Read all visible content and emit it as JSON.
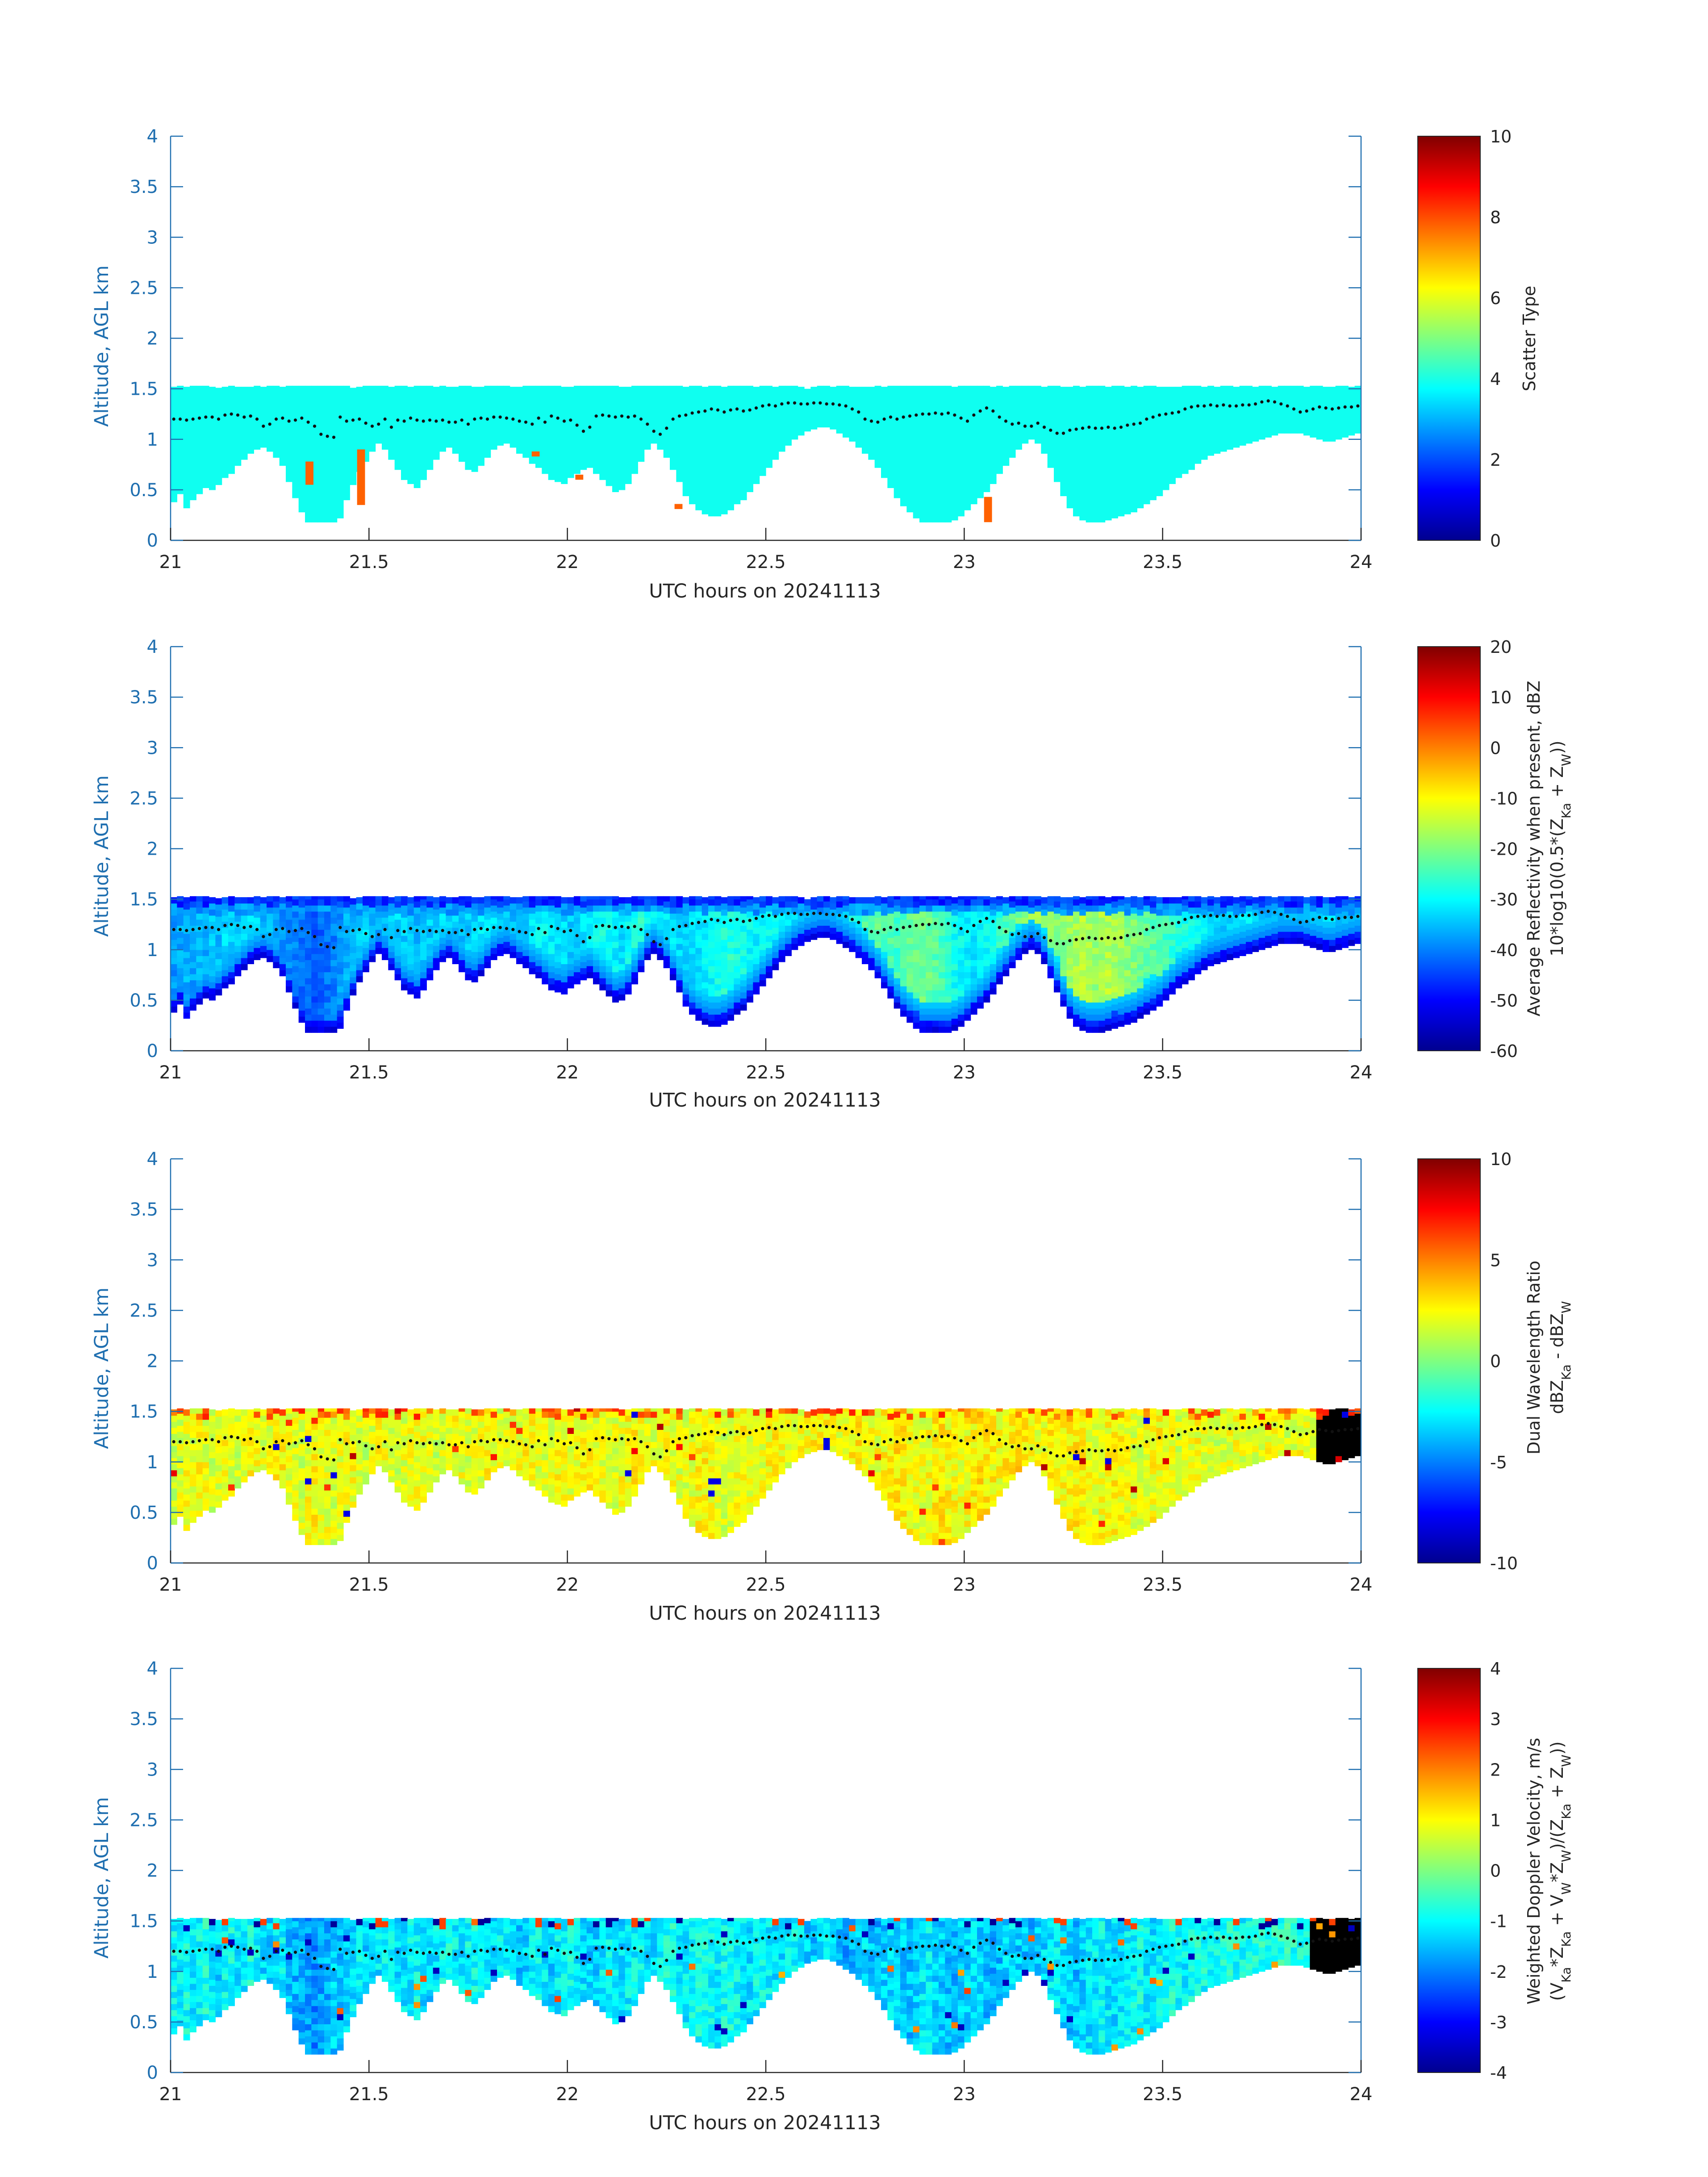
{
  "figure": {
    "xlabel": "UTC hours on 20241113",
    "ylabel": "Altitude, AGL km",
    "xlim": [
      21,
      24
    ],
    "ylim": [
      0,
      4
    ],
    "xticks": [
      "21",
      "21.5",
      "22",
      "22.5",
      "23",
      "23.5",
      "24"
    ],
    "yticks": [
      "0",
      "0.5",
      "1",
      "1.5",
      "2",
      "2.5",
      "3",
      "3.5",
      "4"
    ],
    "axis_color": "#1f6fb0",
    "label_color": "#262626"
  },
  "chart_data": [
    {
      "type": "heatmap",
      "panel": 1,
      "title": "",
      "variable": "scatter_type",
      "colorbar_label": "Scatter Type",
      "clim": [
        0,
        10
      ],
      "cticks": [
        "0",
        "2",
        "4",
        "6",
        "8",
        "10"
      ],
      "dominant_value": 3.9,
      "outliers": [
        {
          "t_start": 21.34,
          "t_end": 21.36,
          "z_start": 0.55,
          "z_end": 0.78,
          "value": 7.8
        },
        {
          "t_start": 21.47,
          "t_end": 21.49,
          "z_start": 0.35,
          "z_end": 0.9,
          "value": 7.8
        },
        {
          "t_start": 21.91,
          "t_end": 21.93,
          "z_start": 0.83,
          "z_end": 0.88,
          "value": 7.8
        },
        {
          "t_start": 22.02,
          "t_end": 22.04,
          "z_start": 0.6,
          "z_end": 0.65,
          "value": 7.8
        },
        {
          "t_start": 22.27,
          "t_end": 22.29,
          "z_start": 0.31,
          "z_end": 0.36,
          "value": 7.8
        },
        {
          "t_start": 23.05,
          "t_end": 23.07,
          "z_start": 0.18,
          "z_end": 0.43,
          "value": 7.8
        }
      ]
    },
    {
      "type": "heatmap",
      "panel": 2,
      "variable": "average_reflectivity",
      "colorbar_label": [
        "Average Reflectivity when present, dBZ",
        "10*log10(0.5*(Z",
        "Ka",
        " + Z",
        "W",
        "))"
      ],
      "clim": [
        -60,
        20
      ],
      "cticks": [
        "-60",
        "-50",
        "-40",
        "-30",
        "-20",
        "-10",
        "0",
        "10",
        "20"
      ]
    },
    {
      "type": "heatmap",
      "panel": 3,
      "variable": "dual_wavelength_ratio",
      "colorbar_label": [
        "Dual Wavelength Ratio",
        "dBZ",
        "Ka",
        " - dBZ",
        "W"
      ],
      "clim": [
        -10,
        10
      ],
      "cticks": [
        "-10",
        "-5",
        "0",
        "5",
        "10"
      ]
    },
    {
      "type": "heatmap",
      "panel": 4,
      "variable": "weighted_doppler_velocity",
      "colorbar_label": [
        "Weighted Doppler Velocity, m/s",
        "(V",
        "Ka",
        "*Z",
        "Ka",
        " + V",
        "W",
        "*Z",
        "W",
        ")/(Z",
        "Ka",
        " + Z",
        "W",
        "))"
      ],
      "clim": [
        -4,
        4
      ],
      "cticks": [
        "-4",
        "-3",
        "-2",
        "-1",
        "0",
        "1",
        "2",
        "3",
        "4"
      ]
    }
  ],
  "cloud_profile": {
    "time_step_h": 0.0166667,
    "range_gate_km": 0.06,
    "cloud_top_km": [
      1.53,
      1.53,
      1.53,
      1.53,
      1.53,
      1.53,
      1.53,
      1.53,
      1.53,
      1.53,
      1.53,
      1.53,
      1.53,
      1.53,
      1.53,
      1.53,
      1.53,
      1.53,
      1.53,
      1.53,
      1.53,
      1.53,
      1.53,
      1.53,
      1.53,
      1.53,
      1.53,
      1.53,
      1.53,
      1.53,
      1.53,
      1.53,
      1.53,
      1.53,
      1.53,
      1.53,
      1.53,
      1.53,
      1.53,
      1.53,
      1.53,
      1.53,
      1.53,
      1.53,
      1.53,
      1.53,
      1.53,
      1.53,
      1.53,
      1.53,
      1.53,
      1.53,
      1.53,
      1.53,
      1.53,
      1.53,
      1.53,
      1.53,
      1.53,
      1.53,
      1.53,
      1.53,
      1.53,
      1.53,
      1.53,
      1.53,
      1.53,
      1.53,
      1.53,
      1.53,
      1.53,
      1.53,
      1.53,
      1.53,
      1.53,
      1.53,
      1.53,
      1.53,
      1.53,
      1.53,
      1.53,
      1.53,
      1.53,
      1.53,
      1.53,
      1.53,
      1.53,
      1.53,
      1.53,
      1.53,
      1.53,
      1.53,
      1.53,
      1.53,
      1.53,
      1.53,
      1.53,
      1.53,
      1.53,
      1.53,
      1.53,
      1.53,
      1.53,
      1.53,
      1.53,
      1.53,
      1.53,
      1.53,
      1.53,
      1.53,
      1.53,
      1.53,
      1.53,
      1.53,
      1.53,
      1.53,
      1.53,
      1.53,
      1.53,
      1.53,
      1.53,
      1.53,
      1.53,
      1.53,
      1.53,
      1.53,
      1.53,
      1.53,
      1.53,
      1.53,
      1.53,
      1.53,
      1.53,
      1.53,
      1.53,
      1.53,
      1.53,
      1.53,
      1.53,
      1.53,
      1.53,
      1.53,
      1.53,
      1.53,
      1.53,
      1.53,
      1.53,
      1.53,
      1.53,
      1.53,
      1.53,
      1.53,
      1.53,
      1.53,
      1.53,
      1.53,
      1.53,
      1.53,
      1.53,
      1.53,
      1.53,
      1.53,
      1.53,
      1.53,
      1.53,
      1.53,
      1.53,
      1.53,
      1.53,
      1.53,
      1.53,
      1.53,
      1.53,
      1.53,
      1.53,
      1.53,
      1.53,
      1.53,
      1.53,
      1.53,
      1.53,
      1.53,
      1.53,
      1.53,
      1.53,
      1.53
    ],
    "cloud_base_km": [
      0.38,
      0.46,
      0.32,
      0.4,
      0.46,
      0.52,
      0.5,
      0.55,
      0.62,
      0.66,
      0.74,
      0.8,
      0.86,
      0.9,
      0.92,
      0.88,
      0.82,
      0.74,
      0.58,
      0.42,
      0.28,
      0.18,
      0.18,
      0.18,
      0.18,
      0.18,
      0.22,
      0.4,
      0.55,
      0.68,
      0.78,
      0.88,
      0.96,
      0.9,
      0.8,
      0.7,
      0.6,
      0.56,
      0.52,
      0.6,
      0.7,
      0.8,
      0.88,
      0.92,
      0.86,
      0.78,
      0.7,
      0.68,
      0.74,
      0.82,
      0.9,
      0.94,
      0.96,
      0.92,
      0.86,
      0.82,
      0.76,
      0.72,
      0.66,
      0.6,
      0.58,
      0.56,
      0.62,
      0.66,
      0.7,
      0.72,
      0.66,
      0.6,
      0.54,
      0.48,
      0.5,
      0.56,
      0.66,
      0.78,
      0.9,
      0.96,
      0.9,
      0.82,
      0.7,
      0.58,
      0.44,
      0.36,
      0.3,
      0.26,
      0.24,
      0.24,
      0.26,
      0.3,
      0.36,
      0.4,
      0.48,
      0.56,
      0.64,
      0.72,
      0.8,
      0.88,
      0.94,
      1.0,
      1.04,
      1.08,
      1.1,
      1.12,
      1.12,
      1.1,
      1.06,
      1.02,
      0.98,
      0.92,
      0.86,
      0.8,
      0.72,
      0.62,
      0.52,
      0.42,
      0.34,
      0.28,
      0.22,
      0.18,
      0.18,
      0.18,
      0.18,
      0.18,
      0.2,
      0.24,
      0.3,
      0.36,
      0.42,
      0.48,
      0.56,
      0.66,
      0.74,
      0.82,
      0.9,
      0.96,
      1.0,
      0.96,
      0.86,
      0.72,
      0.58,
      0.44,
      0.32,
      0.24,
      0.2,
      0.18,
      0.18,
      0.18,
      0.2,
      0.22,
      0.24,
      0.26,
      0.28,
      0.32,
      0.36,
      0.4,
      0.44,
      0.5,
      0.56,
      0.62,
      0.66,
      0.7,
      0.76,
      0.8,
      0.84,
      0.86,
      0.88,
      0.9,
      0.92,
      0.94,
      0.96,
      0.98,
      1.0,
      1.02,
      1.04,
      1.06,
      1.06,
      1.06,
      1.06,
      1.04,
      1.02,
      1.0,
      0.98,
      0.98,
      1.0,
      1.02,
      1.04,
      1.06
    ],
    "reflectivity_dBZ": [
      -38,
      -37,
      -36,
      -37,
      -35,
      -36,
      -34,
      -35,
      -33,
      -34,
      -35,
      -34,
      -32,
      -33,
      -35,
      -36,
      -37,
      -38,
      -39,
      -40,
      -41,
      -42,
      -43,
      -42,
      -41,
      -40,
      -38,
      -36,
      -35,
      -34,
      -33,
      -35,
      -36,
      -35,
      -34,
      -33,
      -34,
      -35,
      -36,
      -35,
      -34,
      -33,
      -32,
      -33,
      -34,
      -35,
      -34,
      -33,
      -32,
      -31,
      -32,
      -33,
      -34,
      -35,
      -34,
      -33,
      -32,
      -31,
      -30,
      -31,
      -32,
      -33,
      -34,
      -33,
      -32,
      -31,
      -30,
      -29,
      -30,
      -31,
      -32,
      -30,
      -28,
      -27,
      -28,
      -29,
      -30,
      -31,
      -32,
      -33,
      -34,
      -33,
      -32,
      -31,
      -30,
      -29,
      -28,
      -27,
      -28,
      -29,
      -30,
      -31,
      -30,
      -29,
      -28,
      -29,
      -30,
      -31,
      -32,
      -31,
      -30,
      -29,
      -30,
      -31,
      -32,
      -30,
      -28,
      -26,
      -24,
      -23,
      -22,
      -23,
      -24,
      -25,
      -24,
      -23,
      -22,
      -21,
      -22,
      -23,
      -25,
      -27,
      -29,
      -30,
      -31,
      -32,
      -31,
      -30,
      -28,
      -26,
      -24,
      -22,
      -20,
      -19,
      -18,
      -17,
      -18,
      -19,
      -20,
      -19,
      -18,
      -17,
      -16,
      -17,
      -18,
      -17,
      -16,
      -17,
      -18,
      -19,
      -20,
      -21,
      -22,
      -23,
      -24,
      -25,
      -26,
      -27,
      -28,
      -29,
      -30,
      -31,
      -32,
      -33,
      -33,
      -32,
      -31,
      -30,
      -31,
      -32,
      -33,
      -34,
      -35,
      -34,
      -33,
      -32,
      -33,
      -34,
      -35,
      -34,
      -33,
      -32,
      -33,
      -34,
      -35,
      -36,
      -35,
      -34
    ],
    "dwr_dB": [
      1.5,
      1.8,
      2.2,
      1.9,
      2.4,
      2.1,
      1.7,
      2.0,
      2.3,
      1.9,
      1.6,
      2.1,
      2.5,
      2.2,
      1.8,
      2.0,
      2.4,
      2.6,
      2.1,
      1.9,
      1.7,
      2.2,
      2.5,
      2.3,
      2.0,
      1.8,
      2.1,
      2.4,
      2.2,
      1.9,
      1.6,
      2.0,
      2.3,
      2.1,
      1.8,
      1.7,
      2.0,
      2.2,
      2.4,
      2.1,
      1.9,
      1.6,
      1.8,
      2.1,
      2.3,
      2.0,
      1.8,
      1.9,
      2.2,
      2.4,
      2.1,
      1.9,
      1.7,
      2.0,
      2.2,
      2.5,
      2.3,
      2.0,
      1.8,
      2.1,
      2.3,
      2.1,
      1.9,
      2.2,
      2.4,
      2.6,
      2.3,
      2.1,
      1.9,
      2.0,
      2.2,
      2.5,
      2.7,
      2.4,
      2.1,
      2.0,
      2.3,
      2.5,
      2.2,
      1.9,
      1.8,
      2.1,
      2.4,
      2.6,
      2.3,
      2.0,
      1.8,
      2.0,
      2.3,
      2.5,
      2.2,
      2.0,
      2.1,
      2.4,
      2.6,
      2.3,
      2.1,
      1.9,
      2.2,
      2.4,
      2.6,
      2.8,
      2.5,
      2.2,
      2.0,
      2.3,
      2.6,
      2.9,
      2.7,
      2.4,
      2.2,
      2.5,
      2.8,
      3.0,
      2.7,
      2.4,
      2.2,
      2.0,
      2.3,
      2.6,
      2.8,
      2.5,
      2.3,
      2.1,
      2.4,
      2.7,
      3.0,
      2.8,
      2.5,
      2.3,
      2.6,
      2.9,
      3.1,
      2.8,
      2.5,
      2.2,
      2.4,
      2.7,
      2.5,
      2.3,
      2.6,
      2.8,
      2.5,
      2.2,
      2.0,
      2.3,
      2.5,
      2.7,
      2.4,
      2.2,
      2.0,
      1.8,
      2.1,
      2.3,
      2.5,
      2.2,
      2.0,
      1.8,
      1.9,
      2.1,
      2.3,
      2.0,
      1.8,
      1.7,
      1.9,
      2.1,
      2.2,
      2.0,
      1.8,
      1.9,
      2.1,
      2.3,
      2.1,
      1.9,
      1.8,
      2.0,
      2.2,
      2.0,
      1.9
    ],
    "velocity_ms": [
      -1.0,
      -1.1,
      -0.9,
      -1.2,
      -1.0,
      -0.8,
      -1.1,
      -1.3,
      -1.0,
      -0.9,
      -1.2,
      -1.1,
      -0.8,
      -1.0,
      -1.3,
      -1.4,
      -1.2,
      -1.1,
      -1.5,
      -1.6,
      -1.7,
      -1.8,
      -1.9,
      -1.7,
      -1.6,
      -1.4,
      -1.5,
      -1.3,
      -1.2,
      -1.1,
      -1.3,
      -1.4,
      -1.2,
      -1.0,
      -1.1,
      -1.3,
      -1.2,
      -1.1,
      -1.0,
      -1.2,
      -1.3,
      -1.1,
      -1.0,
      -0.9,
      -1.1,
      -1.2,
      -1.0,
      -0.9,
      -1.1,
      -1.2,
      -1.3,
      -1.1,
      -1.0,
      -1.2,
      -1.4,
      -1.3,
      -1.1,
      -1.0,
      -1.2,
      -1.3,
      -1.1,
      -1.0,
      -0.9,
      -1.1,
      -1.2,
      -1.4,
      -1.3,
      -1.1,
      -1.0,
      -1.2,
      -1.3,
      -1.1,
      -1.0,
      -0.9,
      -1.1,
      -1.2,
      -1.0,
      -0.9,
      -0.8,
      -1.0,
      -1.1,
      -1.0,
      -0.9,
      -0.8,
      -1.0,
      -1.1,
      -0.9,
      -0.8,
      -1.0,
      -1.1,
      -1.2,
      -1.0,
      -0.9,
      -1.1,
      -1.2,
      -1.3,
      -1.1,
      -1.0,
      -1.2,
      -1.4,
      -1.5,
      -1.3,
      -1.2,
      -1.4,
      -1.6,
      -1.7,
      -1.5,
      -1.4,
      -1.3,
      -1.5,
      -1.6,
      -1.4,
      -1.3,
      -1.2,
      -1.4,
      -1.5,
      -1.3,
      -1.2,
      -1.1,
      -1.3,
      -1.4,
      -1.5,
      -1.6,
      -1.4,
      -1.3,
      -1.2,
      -1.4,
      -1.5,
      -1.6,
      -1.5,
      -1.3,
      -1.2,
      -1.4,
      -1.5,
      -1.6,
      -1.4,
      -1.3,
      -1.2,
      -1.1,
      -1.3,
      -1.4,
      -1.5,
      -1.3,
      -1.2,
      -1.1,
      -1.0,
      -1.2,
      -1.3,
      -1.2,
      -1.1,
      -1.0,
      -0.9,
      -1.1,
      -1.2,
      -1.0,
      -0.9,
      -0.8,
      -1.0,
      -1.1,
      -0.9,
      -0.8,
      -0.9,
      -1.0,
      -0.9,
      -0.8,
      -0.7,
      -0.9,
      -1.0,
      -0.8,
      -0.7,
      -0.8,
      -0.9,
      -0.8,
      -0.7,
      -0.6,
      -0.8,
      -0.9,
      -0.8
    ],
    "lcl_km": [
      1.2,
      1.2,
      1.19,
      1.2,
      1.21,
      1.22,
      1.22,
      1.2,
      1.24,
      1.25,
      1.24,
      1.22,
      1.23,
      1.2,
      1.13,
      1.15,
      1.2,
      1.21,
      1.18,
      1.19,
      1.21,
      1.17,
      1.13,
      1.05,
      1.03,
      1.02,
      1.22,
      1.18,
      1.19,
      1.2,
      1.16,
      1.13,
      1.15,
      1.2,
      1.12,
      1.19,
      1.18,
      1.21,
      1.19,
      1.18,
      1.19,
      1.18,
      1.19,
      1.17,
      1.17,
      1.19,
      1.15,
      1.2,
      1.21,
      1.2,
      1.22,
      1.22,
      1.21,
      1.2,
      1.18,
      1.17,
      1.15,
      1.21,
      1.17,
      1.23,
      1.21,
      1.18,
      1.19,
      1.14,
      1.08,
      1.12,
      1.23,
      1.24,
      1.23,
      1.22,
      1.23,
      1.22,
      1.23,
      1.2,
      1.15,
      1.08,
      1.05,
      1.11,
      1.2,
      1.23,
      1.24,
      1.26,
      1.27,
      1.28,
      1.3,
      1.29,
      1.27,
      1.29,
      1.3,
      1.28,
      1.29,
      1.31,
      1.33,
      1.34,
      1.33,
      1.35,
      1.36,
      1.36,
      1.35,
      1.35,
      1.36,
      1.36,
      1.35,
      1.35,
      1.34,
      1.33,
      1.3,
      1.27,
      1.2,
      1.18,
      1.17,
      1.2,
      1.22,
      1.2,
      1.22,
      1.23,
      1.24,
      1.25,
      1.25,
      1.26,
      1.25,
      1.26,
      1.24,
      1.21,
      1.18,
      1.24,
      1.28,
      1.31,
      1.28,
      1.22,
      1.18,
      1.15,
      1.16,
      1.13,
      1.13,
      1.16,
      1.12,
      1.09,
      1.06,
      1.06,
      1.09,
      1.1,
      1.11,
      1.12,
      1.11,
      1.11,
      1.12,
      1.11,
      1.12,
      1.14,
      1.15,
      1.16,
      1.2,
      1.22,
      1.24,
      1.25,
      1.26,
      1.27,
      1.3,
      1.32,
      1.33,
      1.33,
      1.34,
      1.33,
      1.34,
      1.33,
      1.33,
      1.34,
      1.34,
      1.35,
      1.37,
      1.38,
      1.37,
      1.35,
      1.33,
      1.3,
      1.27,
      1.28,
      1.3,
      1.32,
      1.31,
      1.3,
      1.31,
      1.32,
      1.32,
      1.33,
      1.32,
      1.33,
      1.33,
      1.34
    ]
  }
}
